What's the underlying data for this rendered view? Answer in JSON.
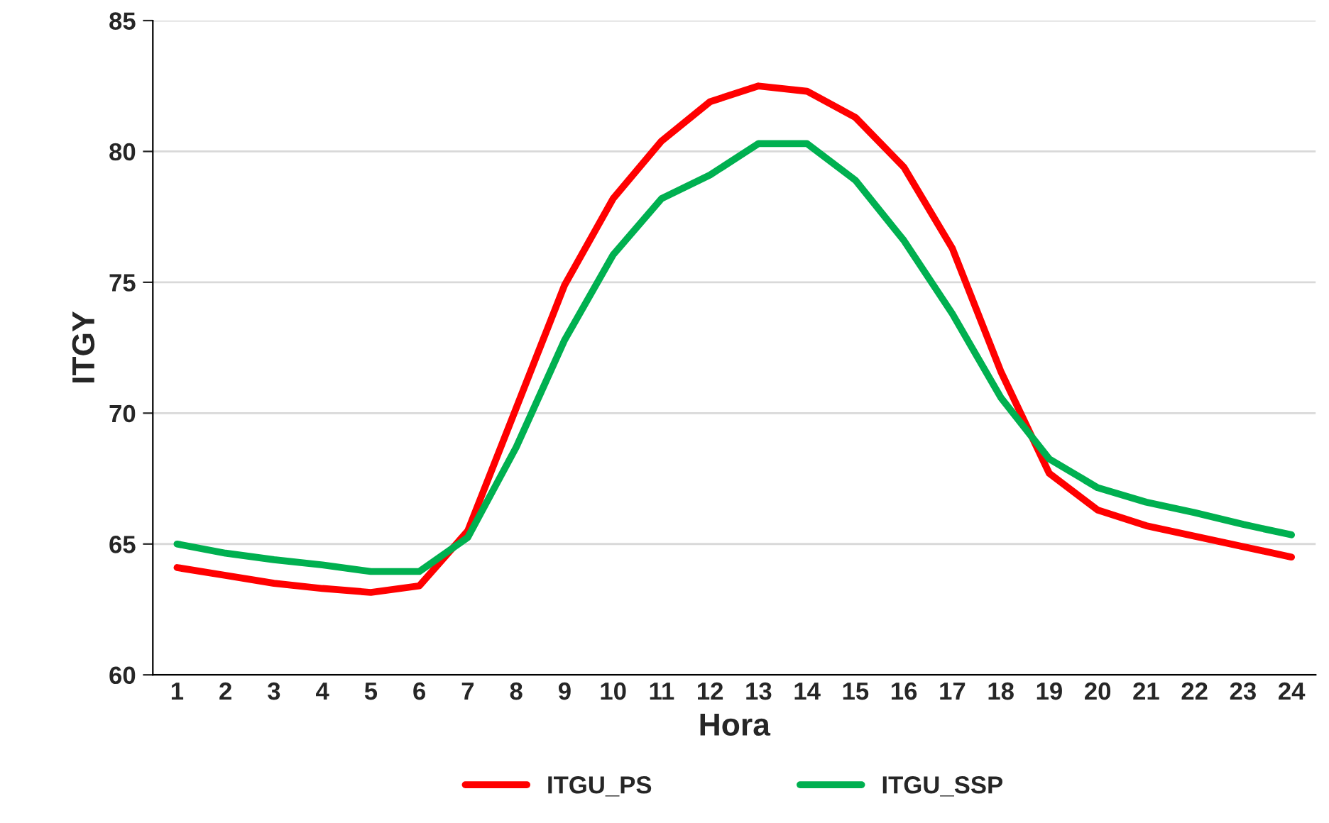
{
  "chart_data": {
    "type": "line",
    "xlabel": "Hora",
    "ylabel": "ITGY",
    "categories": [
      "1",
      "2",
      "3",
      "4",
      "5",
      "6",
      "7",
      "8",
      "9",
      "10",
      "11",
      "12",
      "13",
      "14",
      "15",
      "16",
      "17",
      "18",
      "19",
      "20",
      "21",
      "22",
      "23",
      "24"
    ],
    "series": [
      {
        "name": "ITGU_PS",
        "color": "#ff0000",
        "values": [
          64.1,
          63.8,
          63.5,
          63.3,
          63.15,
          63.4,
          65.5,
          70.2,
          74.9,
          78.2,
          80.4,
          81.9,
          82.5,
          82.3,
          81.3,
          79.4,
          76.3,
          71.6,
          67.7,
          66.3,
          65.7,
          65.3,
          64.9,
          64.5
        ]
      },
      {
        "name": "ITGU_SSP",
        "color": "#00b050",
        "values": [
          65.0,
          64.65,
          64.4,
          64.2,
          63.95,
          63.95,
          65.25,
          68.7,
          72.8,
          76.05,
          78.2,
          79.1,
          80.3,
          80.3,
          78.9,
          76.6,
          73.8,
          70.6,
          68.25,
          67.15,
          66.6,
          66.2,
          65.75,
          65.35
        ]
      }
    ],
    "ylim": [
      60,
      85
    ],
    "yticks": [
      60,
      65,
      70,
      75,
      80,
      85
    ],
    "grid": "y",
    "legend": "bottom",
    "line_style": "solid",
    "marker": "none"
  }
}
